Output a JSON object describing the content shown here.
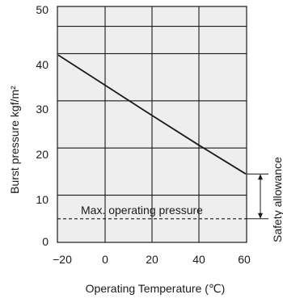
{
  "chart_data": {
    "type": "line",
    "xlabel": "Operating Temperature (℃)",
    "ylabel": "Burst pressure kgf/m²",
    "x_ticks": [
      "−20",
      "0",
      "20",
      "40",
      "60"
    ],
    "y_ticks": [
      "0",
      "10",
      "20",
      "30",
      "40",
      "50"
    ],
    "xlim": [
      -20,
      60
    ],
    "ylim": [
      0,
      50
    ],
    "grid": true,
    "series": [
      {
        "x": [
          -20,
          0,
          20,
          40,
          60
        ],
        "y": [
          39.7,
          33.3,
          26.9,
          20.6,
          14.5
        ]
      }
    ],
    "reference_line": {
      "label": "Max. operating pressure",
      "y": 5
    },
    "annotation": {
      "label": "Safety allowance",
      "from": 5,
      "to": 14.5
    }
  },
  "colors": {
    "plot_background": "#eeeeee",
    "grid": "#1a1a1a",
    "line": "#1a1a1a"
  }
}
